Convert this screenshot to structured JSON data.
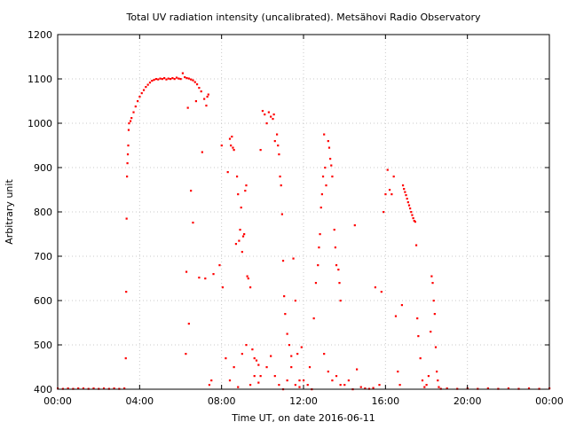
{
  "chart_data": {
    "type": "scatter",
    "title": "Total UV radiation intensity (uncalibrated). Metsähovi Radio Observatory",
    "xlabel": "Time UT, on date 2016-06-11",
    "ylabel": "Arbitrary unit",
    "xlim": [
      0,
      24
    ],
    "ylim": [
      400,
      1200
    ],
    "x_ticks": [
      0,
      4,
      8,
      12,
      16,
      20,
      24
    ],
    "x_tick_labels": [
      "00:00",
      "04:00",
      "08:00",
      "12:00",
      "16:00",
      "20:00",
      "00:00"
    ],
    "y_ticks": [
      400,
      500,
      600,
      700,
      800,
      900,
      1000,
      1100,
      1200
    ],
    "y_tick_labels": [
      "400",
      "500",
      "600",
      "700",
      "800",
      "900",
      "1000",
      "1100",
      "1200"
    ],
    "grid": true,
    "legend": "none",
    "series": [
      {
        "color": "#ff0000",
        "points": [
          [
            0.0,
            402
          ],
          [
            0.25,
            401
          ],
          [
            0.5,
            402
          ],
          [
            0.75,
            401
          ],
          [
            1.0,
            402
          ],
          [
            1.25,
            402
          ],
          [
            1.5,
            401
          ],
          [
            1.75,
            402
          ],
          [
            2.0,
            401
          ],
          [
            2.25,
            402
          ],
          [
            2.5,
            401
          ],
          [
            2.75,
            402
          ],
          [
            3.0,
            401
          ],
          [
            3.25,
            402
          ],
          [
            3.32,
            470
          ],
          [
            3.34,
            620
          ],
          [
            3.36,
            785
          ],
          [
            3.38,
            880
          ],
          [
            3.4,
            910
          ],
          [
            3.42,
            930
          ],
          [
            3.44,
            950
          ],
          [
            3.46,
            985
          ],
          [
            3.48,
            1000
          ],
          [
            3.55,
            1005
          ],
          [
            3.6,
            1012
          ],
          [
            3.7,
            1025
          ],
          [
            3.8,
            1038
          ],
          [
            3.9,
            1050
          ],
          [
            4.0,
            1060
          ],
          [
            4.1,
            1068
          ],
          [
            4.2,
            1075
          ],
          [
            4.3,
            1082
          ],
          [
            4.4,
            1087
          ],
          [
            4.5,
            1092
          ],
          [
            4.6,
            1096
          ],
          [
            4.7,
            1098
          ],
          [
            4.8,
            1100
          ],
          [
            4.9,
            1099
          ],
          [
            5.0,
            1101
          ],
          [
            5.1,
            1100
          ],
          [
            5.2,
            1102
          ],
          [
            5.3,
            1099
          ],
          [
            5.4,
            1101
          ],
          [
            5.5,
            1100
          ],
          [
            5.6,
            1102
          ],
          [
            5.7,
            1100
          ],
          [
            5.8,
            1103
          ],
          [
            5.9,
            1101
          ],
          [
            6.0,
            1100
          ],
          [
            6.1,
            1113
          ],
          [
            6.2,
            1104
          ],
          [
            6.3,
            1102
          ],
          [
            6.4,
            1101
          ],
          [
            6.5,
            1099
          ],
          [
            6.6,
            1097
          ],
          [
            6.7,
            1093
          ],
          [
            6.8,
            1088
          ],
          [
            6.9,
            1080
          ],
          [
            7.0,
            1072
          ],
          [
            6.25,
            480
          ],
          [
            6.28,
            665
          ],
          [
            6.35,
            1035
          ],
          [
            6.4,
            548
          ],
          [
            6.5,
            848
          ],
          [
            6.6,
            776
          ],
          [
            6.75,
            1050
          ],
          [
            6.9,
            652
          ],
          [
            7.05,
            935
          ],
          [
            7.15,
            1055
          ],
          [
            7.2,
            650
          ],
          [
            7.25,
            1040
          ],
          [
            7.3,
            1060
          ],
          [
            7.35,
            1065
          ],
          [
            7.4,
            410
          ],
          [
            7.5,
            420
          ],
          [
            7.6,
            660
          ],
          [
            7.9,
            680
          ],
          [
            8.0,
            950
          ],
          [
            8.05,
            630
          ],
          [
            8.2,
            470
          ],
          [
            8.3,
            890
          ],
          [
            8.4,
            965
          ],
          [
            8.45,
            950
          ],
          [
            8.5,
            970
          ],
          [
            8.55,
            945
          ],
          [
            8.6,
            940
          ],
          [
            8.7,
            728
          ],
          [
            8.75,
            880
          ],
          [
            8.8,
            840
          ],
          [
            8.85,
            735
          ],
          [
            8.9,
            760
          ],
          [
            8.95,
            810
          ],
          [
            9.0,
            710
          ],
          [
            9.05,
            745
          ],
          [
            9.1,
            750
          ],
          [
            9.15,
            848
          ],
          [
            9.2,
            860
          ],
          [
            9.25,
            655
          ],
          [
            9.3,
            650
          ],
          [
            9.4,
            630
          ],
          [
            9.5,
            490
          ],
          [
            9.6,
            470
          ],
          [
            9.7,
            465
          ],
          [
            9.8,
            455
          ],
          [
            9.9,
            430
          ],
          [
            8.4,
            420
          ],
          [
            8.6,
            450
          ],
          [
            8.8,
            405
          ],
          [
            9.0,
            480
          ],
          [
            9.2,
            500
          ],
          [
            9.4,
            410
          ],
          [
            9.6,
            430
          ],
          [
            9.8,
            415
          ],
          [
            9.9,
            940
          ],
          [
            10.0,
            1028
          ],
          [
            10.1,
            1020
          ],
          [
            10.2,
            1000
          ],
          [
            10.3,
            1025
          ],
          [
            10.4,
            1015
          ],
          [
            10.5,
            1010
          ],
          [
            10.55,
            1020
          ],
          [
            10.6,
            960
          ],
          [
            10.7,
            975
          ],
          [
            10.75,
            950
          ],
          [
            10.8,
            930
          ],
          [
            10.85,
            880
          ],
          [
            10.9,
            860
          ],
          [
            10.95,
            795
          ],
          [
            11.0,
            690
          ],
          [
            11.05,
            610
          ],
          [
            11.1,
            570
          ],
          [
            11.2,
            525
          ],
          [
            11.3,
            500
          ],
          [
            11.4,
            475
          ],
          [
            11.5,
            695
          ],
          [
            11.6,
            600
          ],
          [
            11.7,
            480
          ],
          [
            11.8,
            420
          ],
          [
            11.9,
            495
          ],
          [
            10.2,
            450
          ],
          [
            10.4,
            475
          ],
          [
            10.6,
            430
          ],
          [
            10.8,
            410
          ],
          [
            11.0,
            400
          ],
          [
            11.2,
            420
          ],
          [
            11.4,
            450
          ],
          [
            11.6,
            410
          ],
          [
            11.8,
            405
          ],
          [
            12.0,
            420
          ],
          [
            12.2,
            410
          ],
          [
            12.4,
            400
          ],
          [
            12.3,
            450
          ],
          [
            12.5,
            560
          ],
          [
            12.6,
            640
          ],
          [
            12.7,
            680
          ],
          [
            12.75,
            720
          ],
          [
            12.8,
            750
          ],
          [
            12.85,
            810
          ],
          [
            12.9,
            840
          ],
          [
            12.95,
            880
          ],
          [
            13.0,
            975
          ],
          [
            13.05,
            900
          ],
          [
            13.1,
            860
          ],
          [
            13.2,
            960
          ],
          [
            13.25,
            945
          ],
          [
            13.3,
            920
          ],
          [
            13.35,
            905
          ],
          [
            13.4,
            880
          ],
          [
            13.5,
            760
          ],
          [
            13.55,
            720
          ],
          [
            13.6,
            680
          ],
          [
            13.7,
            670
          ],
          [
            13.75,
            640
          ],
          [
            13.8,
            600
          ],
          [
            13.0,
            480
          ],
          [
            13.2,
            440
          ],
          [
            13.4,
            420
          ],
          [
            13.6,
            430
          ],
          [
            13.8,
            410
          ],
          [
            14.0,
            410
          ],
          [
            14.2,
            420
          ],
          [
            14.4,
            400
          ],
          [
            14.5,
            770
          ],
          [
            14.6,
            445
          ],
          [
            14.8,
            405
          ],
          [
            15.0,
            402
          ],
          [
            15.2,
            401
          ],
          [
            15.4,
            403
          ],
          [
            15.5,
            630
          ],
          [
            15.7,
            410
          ],
          [
            15.8,
            620
          ],
          [
            15.9,
            800
          ],
          [
            16.0,
            840
          ],
          [
            16.1,
            895
          ],
          [
            16.2,
            850
          ],
          [
            16.3,
            840
          ],
          [
            16.4,
            880
          ],
          [
            16.5,
            565
          ],
          [
            16.6,
            440
          ],
          [
            16.7,
            410
          ],
          [
            16.8,
            590
          ],
          [
            16.85,
            860
          ],
          [
            16.9,
            852
          ],
          [
            16.95,
            845
          ],
          [
            17.0,
            838
          ],
          [
            17.05,
            830
          ],
          [
            17.1,
            822
          ],
          [
            17.15,
            815
          ],
          [
            17.2,
            808
          ],
          [
            17.25,
            800
          ],
          [
            17.3,
            793
          ],
          [
            17.35,
            786
          ],
          [
            17.4,
            780
          ],
          [
            17.45,
            778
          ],
          [
            17.5,
            725
          ],
          [
            17.55,
            560
          ],
          [
            17.6,
            520
          ],
          [
            17.7,
            470
          ],
          [
            17.8,
            420
          ],
          [
            17.9,
            405
          ],
          [
            18.0,
            410
          ],
          [
            18.1,
            430
          ],
          [
            18.2,
            530
          ],
          [
            18.25,
            655
          ],
          [
            18.3,
            640
          ],
          [
            18.35,
            600
          ],
          [
            18.4,
            570
          ],
          [
            18.45,
            495
          ],
          [
            18.5,
            440
          ],
          [
            18.55,
            420
          ],
          [
            18.6,
            405
          ],
          [
            18.7,
            401
          ],
          [
            19.0,
            402
          ],
          [
            19.5,
            401
          ],
          [
            20.0,
            402
          ],
          [
            20.5,
            401
          ],
          [
            21.0,
            402
          ],
          [
            21.5,
            401
          ],
          [
            22.0,
            402
          ],
          [
            22.5,
            401
          ],
          [
            23.0,
            402
          ],
          [
            23.5,
            401
          ],
          [
            24.0,
            402
          ]
        ]
      }
    ]
  }
}
